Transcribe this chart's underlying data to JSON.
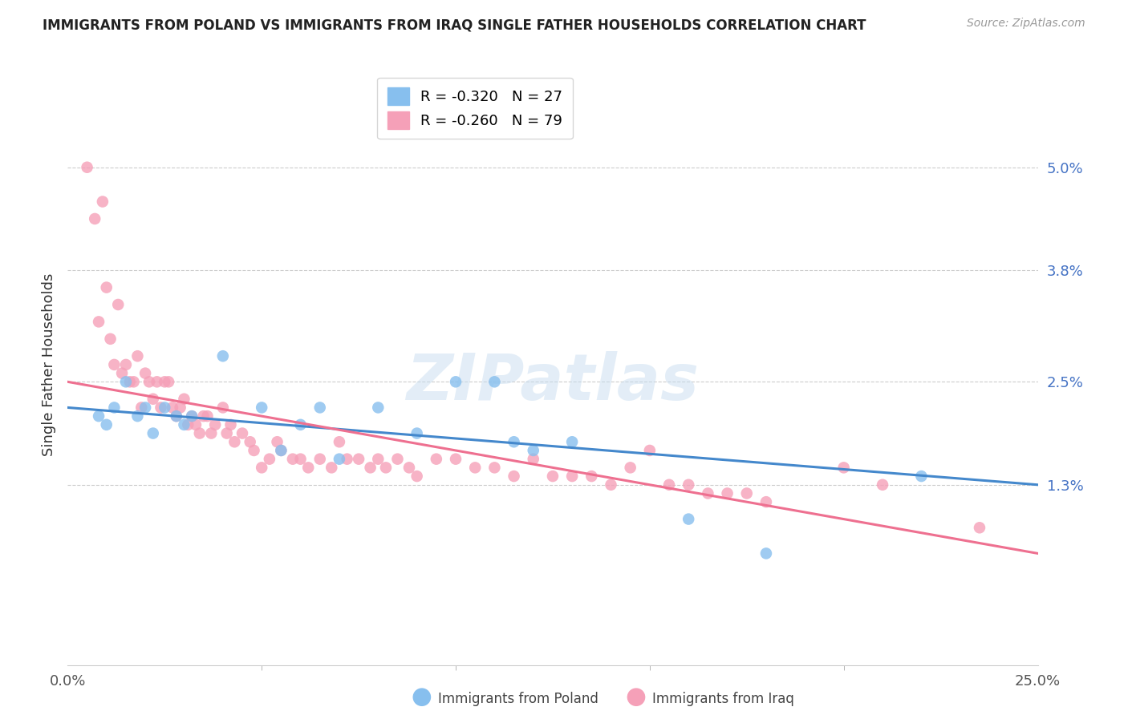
{
  "title": "IMMIGRANTS FROM POLAND VS IMMIGRANTS FROM IRAQ SINGLE FATHER HOUSEHOLDS CORRELATION CHART",
  "source": "Source: ZipAtlas.com",
  "ylabel": "Single Father Households",
  "ytick_labels": [
    "5.0%",
    "3.8%",
    "2.5%",
    "1.3%"
  ],
  "ytick_values": [
    0.05,
    0.038,
    0.025,
    0.013
  ],
  "xtick_labels": [
    "0.0%",
    "25.0%"
  ],
  "xtick_values": [
    0.0,
    0.25
  ],
  "xlim": [
    0.0,
    0.25
  ],
  "ylim": [
    -0.008,
    0.062
  ],
  "legend_poland": "R = -0.320   N = 27",
  "legend_iraq": "R = -0.260   N = 79",
  "poland_color": "#87BFEE",
  "iraq_color": "#F5A0B8",
  "trendline_poland_color": "#4488CC",
  "trendline_iraq_color": "#EE7090",
  "watermark": "ZIPatlas",
  "poland_trendline_x": [
    0.0,
    0.25
  ],
  "poland_trendline_y": [
    0.022,
    0.013
  ],
  "iraq_trendline_x": [
    0.0,
    0.25
  ],
  "iraq_trendline_y": [
    0.025,
    0.005
  ],
  "poland_scatter_x": [
    0.008,
    0.01,
    0.012,
    0.015,
    0.018,
    0.02,
    0.022,
    0.025,
    0.028,
    0.03,
    0.032,
    0.04,
    0.05,
    0.055,
    0.06,
    0.065,
    0.07,
    0.08,
    0.09,
    0.1,
    0.11,
    0.115,
    0.12,
    0.13,
    0.16,
    0.18,
    0.22
  ],
  "poland_scatter_y": [
    0.021,
    0.02,
    0.022,
    0.025,
    0.021,
    0.022,
    0.019,
    0.022,
    0.021,
    0.02,
    0.021,
    0.028,
    0.022,
    0.017,
    0.02,
    0.022,
    0.016,
    0.022,
    0.019,
    0.025,
    0.025,
    0.018,
    0.017,
    0.018,
    0.009,
    0.005,
    0.014
  ],
  "iraq_scatter_x": [
    0.005,
    0.007,
    0.008,
    0.009,
    0.01,
    0.011,
    0.012,
    0.013,
    0.014,
    0.015,
    0.016,
    0.017,
    0.018,
    0.019,
    0.02,
    0.021,
    0.022,
    0.023,
    0.024,
    0.025,
    0.026,
    0.027,
    0.028,
    0.029,
    0.03,
    0.031,
    0.032,
    0.033,
    0.034,
    0.035,
    0.036,
    0.037,
    0.038,
    0.04,
    0.041,
    0.042,
    0.043,
    0.045,
    0.047,
    0.048,
    0.05,
    0.052,
    0.054,
    0.055,
    0.058,
    0.06,
    0.062,
    0.065,
    0.068,
    0.07,
    0.072,
    0.075,
    0.078,
    0.08,
    0.082,
    0.085,
    0.088,
    0.09,
    0.095,
    0.1,
    0.105,
    0.11,
    0.115,
    0.12,
    0.125,
    0.13,
    0.135,
    0.14,
    0.145,
    0.15,
    0.155,
    0.16,
    0.165,
    0.17,
    0.175,
    0.18,
    0.2,
    0.21,
    0.235
  ],
  "iraq_scatter_y": [
    0.05,
    0.044,
    0.032,
    0.046,
    0.036,
    0.03,
    0.027,
    0.034,
    0.026,
    0.027,
    0.025,
    0.025,
    0.028,
    0.022,
    0.026,
    0.025,
    0.023,
    0.025,
    0.022,
    0.025,
    0.025,
    0.022,
    0.021,
    0.022,
    0.023,
    0.02,
    0.021,
    0.02,
    0.019,
    0.021,
    0.021,
    0.019,
    0.02,
    0.022,
    0.019,
    0.02,
    0.018,
    0.019,
    0.018,
    0.017,
    0.015,
    0.016,
    0.018,
    0.017,
    0.016,
    0.016,
    0.015,
    0.016,
    0.015,
    0.018,
    0.016,
    0.016,
    0.015,
    0.016,
    0.015,
    0.016,
    0.015,
    0.014,
    0.016,
    0.016,
    0.015,
    0.015,
    0.014,
    0.016,
    0.014,
    0.014,
    0.014,
    0.013,
    0.015,
    0.017,
    0.013,
    0.013,
    0.012,
    0.012,
    0.012,
    0.011,
    0.015,
    0.013,
    0.008
  ]
}
